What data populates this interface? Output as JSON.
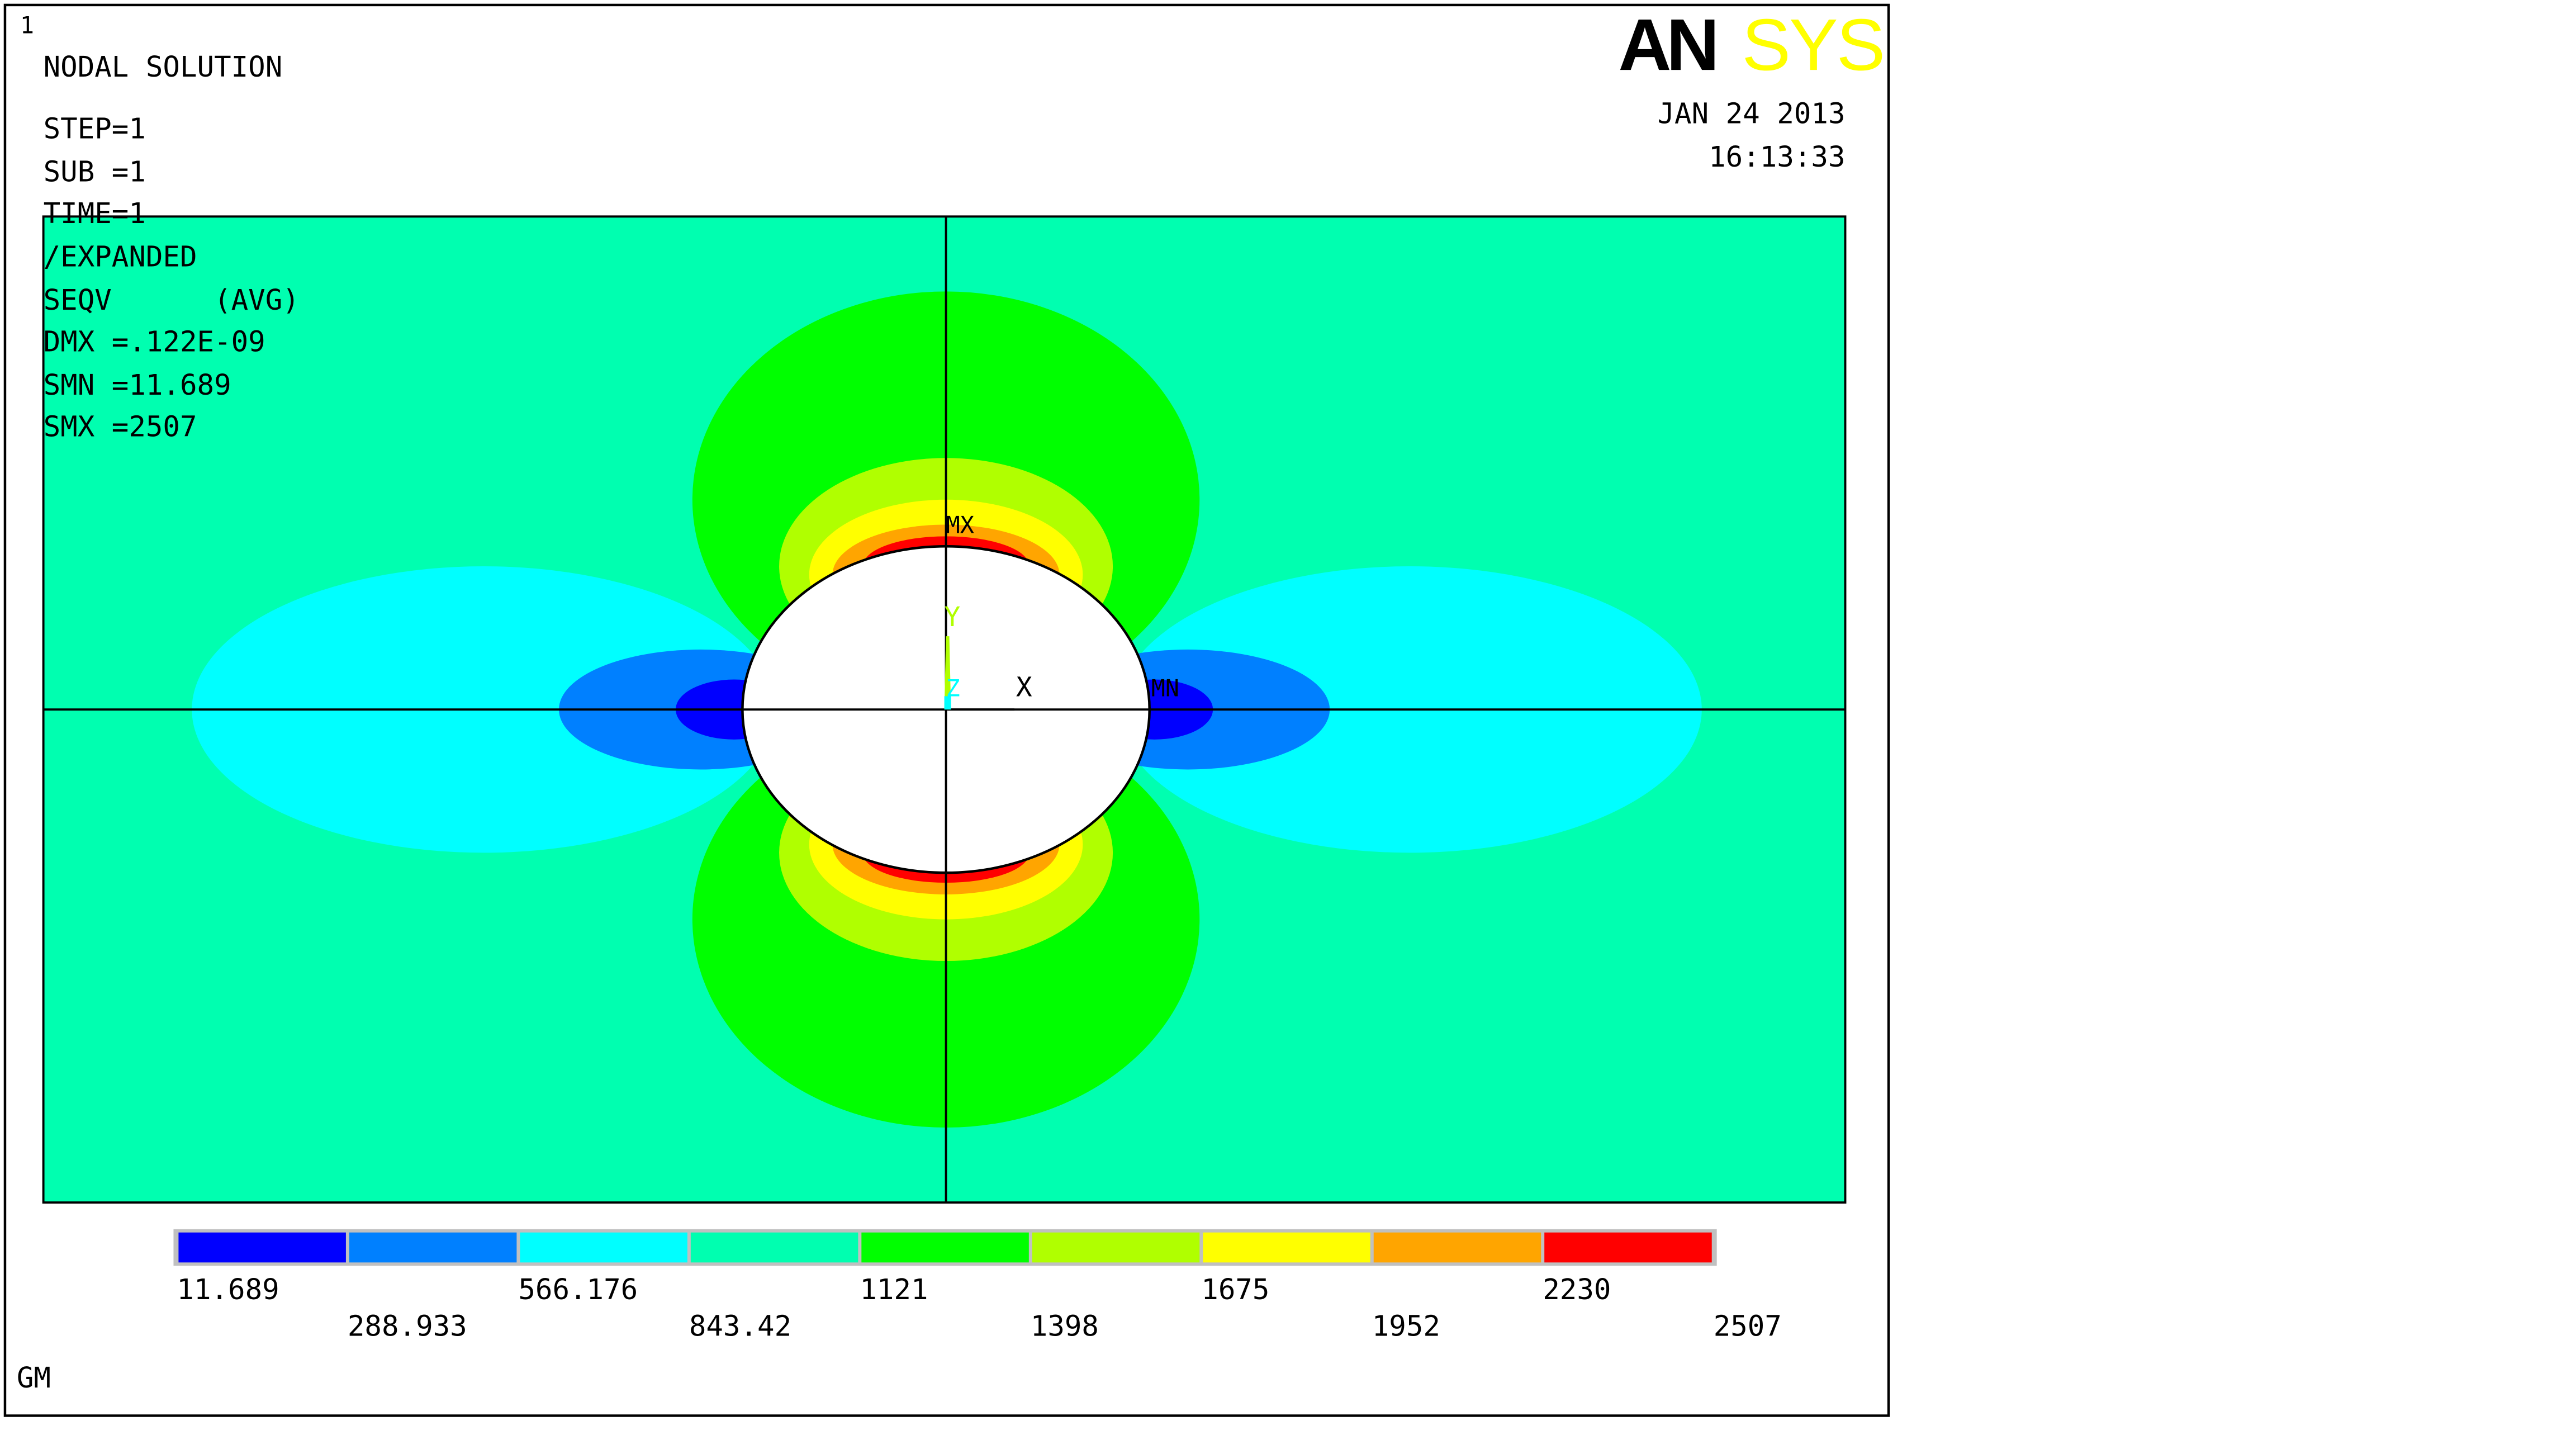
{
  "window_number": "1",
  "logo": {
    "part1": "AN",
    "part2": "SYS"
  },
  "info": {
    "title": "NODAL SOLUTION",
    "step": "STEP=1",
    "sub": "SUB =1",
    "time": "TIME=1",
    "expanded": "/EXPANDED",
    "item": "SEQV      (AVG)",
    "dmx": "DMX =.122E-09",
    "smn": "SMN =11.689",
    "smx": "SMX =2507"
  },
  "date": "JAN 24 2013",
  "time_of_day": "16:13:33",
  "markers": {
    "max": "MX",
    "min": "MN"
  },
  "triad": {
    "x": "X",
    "y": "Y",
    "z": "Z"
  },
  "legend": {
    "colors": [
      "#0000ff",
      "#0080ff",
      "#00ffff",
      "#00ffb0",
      "#00ff00",
      "#b0ff00",
      "#ffff00",
      "#ffa500",
      "#ff0000"
    ],
    "labels_top": [
      "11.689",
      "566.176",
      "1121",
      "1675",
      "2230"
    ],
    "labels_bottom": [
      "288.933",
      "843.42",
      "1398",
      "1952",
      "2507"
    ]
  },
  "footer_label": "GM",
  "colors": {
    "background_field": "#00ffb0",
    "hole": "#ffffff",
    "logo_black": "#000000",
    "logo_yellow": "#ffff00",
    "window_number": "#00ffff"
  }
}
